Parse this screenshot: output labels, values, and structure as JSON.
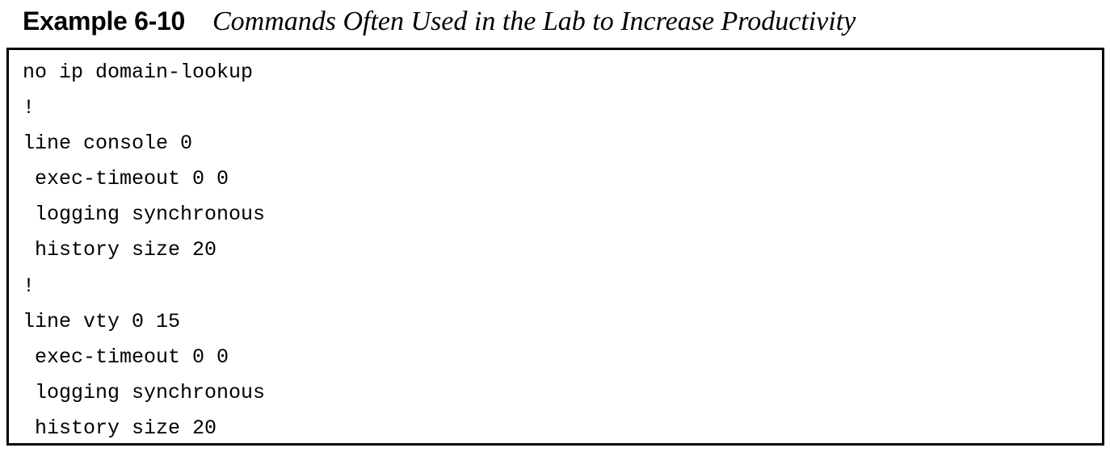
{
  "caption": {
    "label": "Example 6-10",
    "title": "Commands Often Used in the Lab to Increase Productivity"
  },
  "code": {
    "lines": [
      "no ip domain-lookup",
      "!",
      "line console 0",
      " exec-timeout 0 0",
      " logging synchronous",
      " history size 20",
      "!",
      "line vty 0 15",
      " exec-timeout 0 0",
      " logging synchronous",
      " history size 20"
    ]
  }
}
